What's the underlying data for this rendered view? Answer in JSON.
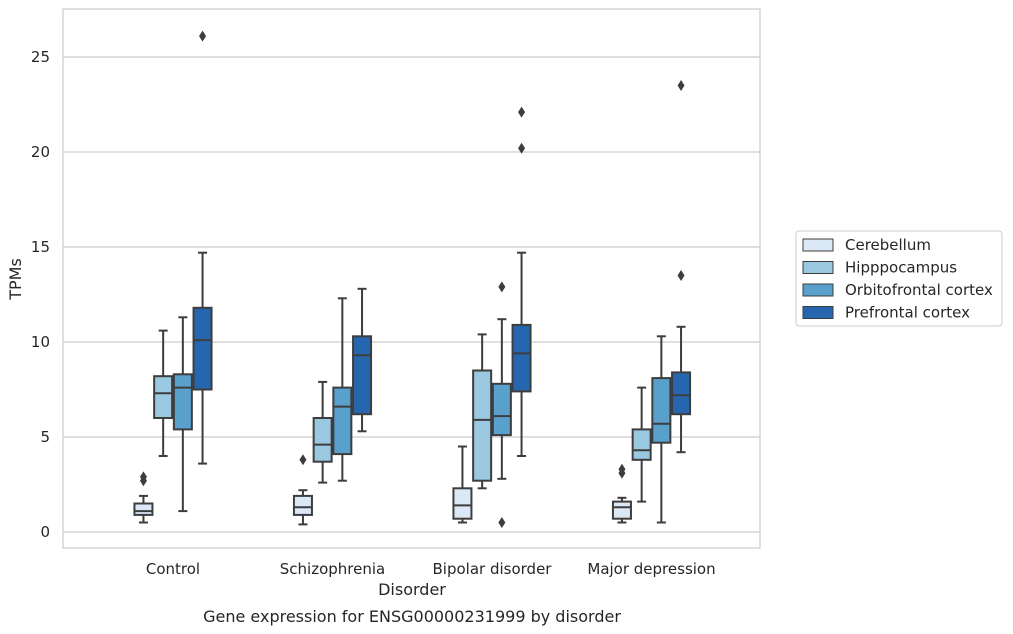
{
  "chart_data": {
    "type": "box",
    "title": "",
    "caption": "Gene expression for ENSG00000231999 by disorder",
    "xlabel": "Disorder",
    "ylabel": "TPMs",
    "ylim": [
      -0.8,
      27.5
    ],
    "yticks": [
      0,
      5,
      10,
      15,
      20,
      25
    ],
    "grid": true,
    "legend_position": "right",
    "categories": [
      "Control",
      "Schizophrenia",
      "Bipolar disorder",
      "Major depression"
    ],
    "series": [
      {
        "name": "Cerebellum",
        "color": "#dbe9f6",
        "boxes": [
          {
            "whisker_low": 0.5,
            "q1": 0.9,
            "median": 1.1,
            "q3": 1.5,
            "whisker_high": 1.9,
            "outliers": [
              2.7,
              2.9
            ]
          },
          {
            "whisker_low": 0.4,
            "q1": 0.9,
            "median": 1.3,
            "q3": 1.9,
            "whisker_high": 2.2,
            "outliers": [
              3.8
            ]
          },
          {
            "whisker_low": 0.5,
            "q1": 0.7,
            "median": 1.4,
            "q3": 2.3,
            "whisker_high": 4.5,
            "outliers": []
          },
          {
            "whisker_low": 0.5,
            "q1": 0.7,
            "median": 1.3,
            "q3": 1.6,
            "whisker_high": 1.8,
            "outliers": [
              3.1,
              3.3
            ]
          }
        ]
      },
      {
        "name": "Hipppocampus",
        "color": "#9ac8e0",
        "boxes": [
          {
            "whisker_low": 4.0,
            "q1": 6.0,
            "median": 7.3,
            "q3": 8.2,
            "whisker_high": 10.6,
            "outliers": []
          },
          {
            "whisker_low": 2.6,
            "q1": 3.7,
            "median": 4.6,
            "q3": 6.0,
            "whisker_high": 7.9,
            "outliers": []
          },
          {
            "whisker_low": 2.3,
            "q1": 2.7,
            "median": 5.9,
            "q3": 8.5,
            "whisker_high": 10.4,
            "outliers": []
          },
          {
            "whisker_low": 1.6,
            "q1": 3.8,
            "median": 4.3,
            "q3": 5.4,
            "whisker_high": 7.6,
            "outliers": []
          }
        ]
      },
      {
        "name": "Orbitofrontal cortex",
        "color": "#5aa0cd",
        "boxes": [
          {
            "whisker_low": 1.1,
            "q1": 5.4,
            "median": 7.6,
            "q3": 8.3,
            "whisker_high": 11.3,
            "outliers": []
          },
          {
            "whisker_low": 2.7,
            "q1": 4.1,
            "median": 6.6,
            "q3": 7.6,
            "whisker_high": 12.3,
            "outliers": []
          },
          {
            "whisker_low": 2.8,
            "q1": 5.1,
            "median": 6.1,
            "q3": 7.8,
            "whisker_high": 11.2,
            "outliers": [
              0.5,
              12.9
            ]
          },
          {
            "whisker_low": 0.5,
            "q1": 4.7,
            "median": 5.7,
            "q3": 8.1,
            "whisker_high": 10.3,
            "outliers": []
          }
        ]
      },
      {
        "name": "Prefrontal cortex",
        "color": "#2666ae",
        "boxes": [
          {
            "whisker_low": 3.6,
            "q1": 7.5,
            "median": 10.1,
            "q3": 11.8,
            "whisker_high": 14.7,
            "outliers": [
              26.1
            ]
          },
          {
            "whisker_low": 5.3,
            "q1": 6.2,
            "median": 9.3,
            "q3": 10.3,
            "whisker_high": 12.8,
            "outliers": []
          },
          {
            "whisker_low": 4.0,
            "q1": 7.4,
            "median": 9.4,
            "q3": 10.9,
            "whisker_high": 14.7,
            "outliers": [
              20.2,
              22.1
            ]
          },
          {
            "whisker_low": 4.2,
            "q1": 6.2,
            "median": 7.2,
            "q3": 8.4,
            "whisker_high": 10.8,
            "outliers": [
              13.5,
              23.5
            ]
          }
        ]
      }
    ]
  }
}
